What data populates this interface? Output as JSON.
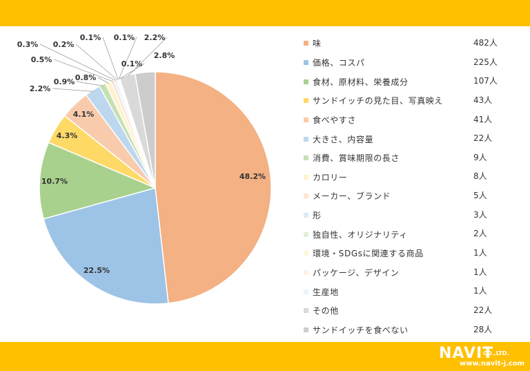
{
  "colors": {
    "band": "#ffc000"
  },
  "chart_data": {
    "type": "pie",
    "title": "",
    "categories": [
      "味",
      "価格、コスパ",
      "食材、原材料、栄養成分",
      "サンドイッチの見た目、写真映え",
      "食べやすさ",
      "大きさ、内容量",
      "消費、賞味期限の長さ",
      "カロリー",
      "メーカー、ブランド",
      "形",
      "独自性、オリジナリティ",
      "環境・SDGsに関連する商品",
      "パッケージ、デザイン",
      "生産地",
      "その他",
      "サンドイッチを食べない"
    ],
    "values": [
      482,
      225,
      107,
      43,
      41,
      22,
      9,
      8,
      5,
      3,
      2,
      1,
      1,
      1,
      22,
      28
    ],
    "percent_labels": [
      "48.2%",
      "22.5%",
      "10.7%",
      "4.3%",
      "4.1%",
      "2.2%",
      "0.9%",
      "0.8%",
      "0.5%",
      "0.3%",
      "0.2%",
      "0.1%",
      "0.1%",
      "0.1%",
      "2.2%",
      "2.8%"
    ],
    "colors": [
      "#f4b183",
      "#9dc3e6",
      "#a9d18e",
      "#ffd966",
      "#f8cbad",
      "#bdd7ee",
      "#c5e0b4",
      "#fff2cc",
      "#fbe5d6",
      "#deebf7",
      "#e2f0d9",
      "#fff6d9",
      "#fdf1e8",
      "#eaf2fa",
      "#d9d9d9",
      "#cccccc"
    ],
    "legend": {
      "position": "right",
      "items": [
        {
          "label": "味",
          "count": "482人"
        },
        {
          "label": "価格、コスパ",
          "count": "225人"
        },
        {
          "label": "食材、原材料、栄養成分",
          "count": "107人"
        },
        {
          "label": "サンドイッチの見た目、写真映え",
          "count": "43人"
        },
        {
          "label": "食べやすさ",
          "count": "41人"
        },
        {
          "label": "大きさ、内容量",
          "count": "22人"
        },
        {
          "label": "消費、賞味期限の長さ",
          "count": "9人"
        },
        {
          "label": "カロリー",
          "count": "8人"
        },
        {
          "label": "メーカー、ブランド",
          "count": "5人"
        },
        {
          "label": "形",
          "count": "3人"
        },
        {
          "label": "独自性、オリジナリティ",
          "count": "2人"
        },
        {
          "label": "環境・SDGsに関連する商品",
          "count": "1人"
        },
        {
          "label": "パッケージ、デザイン",
          "count": "1人"
        },
        {
          "label": "生産地",
          "count": "1人"
        },
        {
          "label": "その他",
          "count": "22人"
        },
        {
          "label": "サンドイッチを食べない",
          "count": "28人"
        }
      ]
    }
  },
  "footer": {
    "logo_main": "NAVIT",
    "logo_co": "CO.,LTD.",
    "logo_url": "www.navit-j.com"
  }
}
